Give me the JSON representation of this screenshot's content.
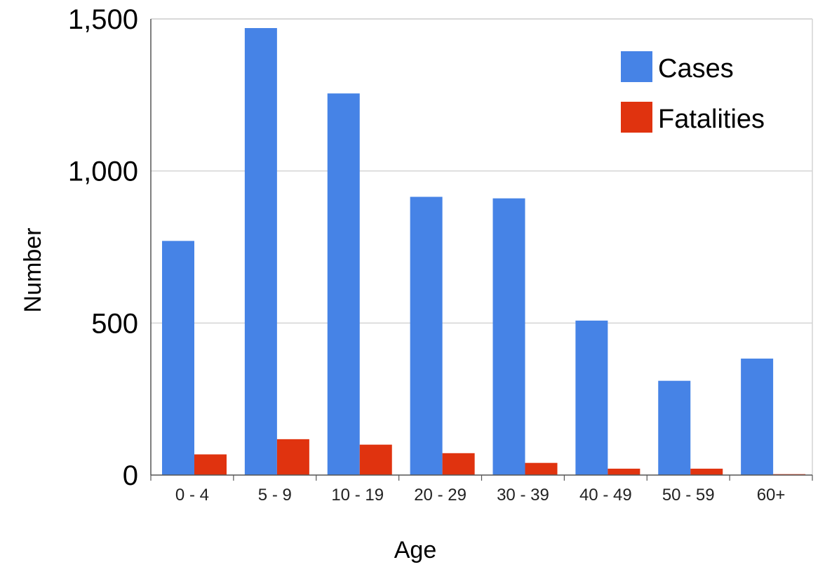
{
  "chart_data": {
    "type": "bar",
    "categories": [
      "0 - 4",
      "5 - 9",
      "10 - 19",
      "20 - 29",
      "30 - 39",
      "40 - 49",
      "50 - 59",
      "60+"
    ],
    "series": [
      {
        "name": "Cases",
        "color": "#4683e6",
        "values": [
          770,
          1470,
          1255,
          915,
          910,
          508,
          310,
          383
        ]
      },
      {
        "name": "Fatalities",
        "color": "#e0330f",
        "values": [
          68,
          118,
          100,
          72,
          40,
          21,
          21,
          3
        ]
      }
    ],
    "xlabel": "Age",
    "ylabel": "Number",
    "ylim": [
      0,
      1500
    ],
    "yticks": [
      {
        "value": 0,
        "label": "0"
      },
      {
        "value": 500,
        "label": "500"
      },
      {
        "value": 1000,
        "label": "1,000"
      },
      {
        "value": 1500,
        "label": "1,500"
      }
    ],
    "grid": true,
    "legend_position": "top-right"
  }
}
